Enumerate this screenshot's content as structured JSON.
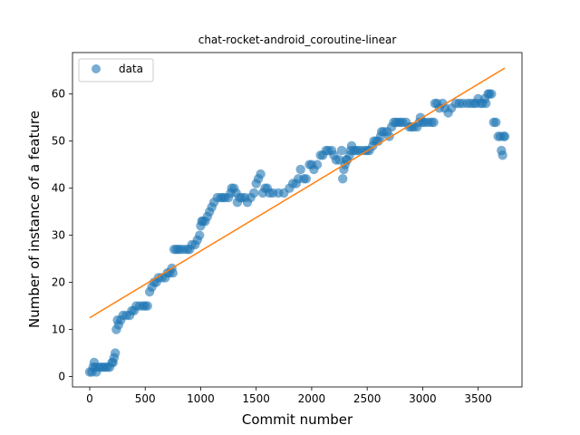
{
  "chart_data": {
    "type": "scatter",
    "title": "chat-rocket-android_coroutine-linear",
    "xlabel": "Commit number",
    "ylabel": "Number of instance of a feature",
    "xlim": [
      -155,
      3895
    ],
    "ylim": [
      -2.2,
      68.8
    ],
    "xticks": [
      0,
      500,
      1000,
      1500,
      2000,
      2500,
      3000,
      3500
    ],
    "yticks": [
      0,
      10,
      20,
      30,
      40,
      50,
      60
    ],
    "legend": {
      "position": "top-left",
      "entries": [
        "data"
      ]
    },
    "colors": {
      "data": "#1f77b4",
      "fit": "#ff7f0e"
    },
    "series": [
      {
        "name": "data",
        "kind": "scatter",
        "points": [
          [
            0,
            1
          ],
          [
            20,
            1
          ],
          [
            30,
            2
          ],
          [
            40,
            3
          ],
          [
            50,
            2
          ],
          [
            60,
            1
          ],
          [
            80,
            2
          ],
          [
            100,
            2
          ],
          [
            120,
            2
          ],
          [
            140,
            2
          ],
          [
            160,
            2
          ],
          [
            180,
            2
          ],
          [
            200,
            3
          ],
          [
            210,
            3
          ],
          [
            220,
            4
          ],
          [
            230,
            5
          ],
          [
            240,
            10
          ],
          [
            250,
            12
          ],
          [
            260,
            11
          ],
          [
            280,
            12
          ],
          [
            300,
            13
          ],
          [
            330,
            13
          ],
          [
            360,
            13
          ],
          [
            380,
            14
          ],
          [
            400,
            14
          ],
          [
            420,
            15
          ],
          [
            450,
            15
          ],
          [
            480,
            15
          ],
          [
            500,
            15
          ],
          [
            520,
            15
          ],
          [
            540,
            18
          ],
          [
            560,
            19
          ],
          [
            580,
            20
          ],
          [
            600,
            20
          ],
          [
            620,
            21
          ],
          [
            650,
            21
          ],
          [
            680,
            21
          ],
          [
            700,
            22
          ],
          [
            720,
            22
          ],
          [
            740,
            23
          ],
          [
            750,
            22
          ],
          [
            760,
            27
          ],
          [
            780,
            27
          ],
          [
            800,
            27
          ],
          [
            820,
            27
          ],
          [
            850,
            27
          ],
          [
            880,
            27
          ],
          [
            900,
            27
          ],
          [
            920,
            28
          ],
          [
            950,
            28
          ],
          [
            970,
            29
          ],
          [
            990,
            30
          ],
          [
            1000,
            32
          ],
          [
            1010,
            33
          ],
          [
            1020,
            33
          ],
          [
            1040,
            33
          ],
          [
            1060,
            34
          ],
          [
            1080,
            35
          ],
          [
            1100,
            36
          ],
          [
            1120,
            37
          ],
          [
            1150,
            38
          ],
          [
            1180,
            38
          ],
          [
            1200,
            38
          ],
          [
            1220,
            38
          ],
          [
            1250,
            38
          ],
          [
            1270,
            39
          ],
          [
            1280,
            40
          ],
          [
            1300,
            40
          ],
          [
            1320,
            39
          ],
          [
            1330,
            37
          ],
          [
            1350,
            38
          ],
          [
            1370,
            38
          ],
          [
            1400,
            38
          ],
          [
            1420,
            37
          ],
          [
            1450,
            38
          ],
          [
            1480,
            39
          ],
          [
            1500,
            41
          ],
          [
            1520,
            42
          ],
          [
            1540,
            43
          ],
          [
            1560,
            39
          ],
          [
            1580,
            40
          ],
          [
            1600,
            40
          ],
          [
            1620,
            39
          ],
          [
            1650,
            39
          ],
          [
            1700,
            39
          ],
          [
            1750,
            39
          ],
          [
            1800,
            40
          ],
          [
            1830,
            41
          ],
          [
            1860,
            41
          ],
          [
            1880,
            42
          ],
          [
            1900,
            44
          ],
          [
            1930,
            42
          ],
          [
            1950,
            42
          ],
          [
            1980,
            45
          ],
          [
            2000,
            45
          ],
          [
            2020,
            44
          ],
          [
            2050,
            45
          ],
          [
            2080,
            47
          ],
          [
            2100,
            47
          ],
          [
            2130,
            48
          ],
          [
            2150,
            48
          ],
          [
            2180,
            48
          ],
          [
            2200,
            47
          ],
          [
            2220,
            46
          ],
          [
            2250,
            46
          ],
          [
            2270,
            48
          ],
          [
            2280,
            42
          ],
          [
            2290,
            44
          ],
          [
            2300,
            45
          ],
          [
            2310,
            46
          ],
          [
            2320,
            46
          ],
          [
            2340,
            47
          ],
          [
            2350,
            48
          ],
          [
            2360,
            49
          ],
          [
            2380,
            48
          ],
          [
            2400,
            48
          ],
          [
            2420,
            48
          ],
          [
            2450,
            48
          ],
          [
            2480,
            48
          ],
          [
            2500,
            48
          ],
          [
            2520,
            48
          ],
          [
            2550,
            49
          ],
          [
            2560,
            50
          ],
          [
            2580,
            50
          ],
          [
            2600,
            50
          ],
          [
            2620,
            51
          ],
          [
            2630,
            52
          ],
          [
            2650,
            52
          ],
          [
            2680,
            52
          ],
          [
            2700,
            51
          ],
          [
            2720,
            53
          ],
          [
            2740,
            54
          ],
          [
            2760,
            54
          ],
          [
            2780,
            54
          ],
          [
            2800,
            54
          ],
          [
            2820,
            54
          ],
          [
            2850,
            54
          ],
          [
            2880,
            53
          ],
          [
            2900,
            53
          ],
          [
            2920,
            53
          ],
          [
            2950,
            53
          ],
          [
            2970,
            54
          ],
          [
            2980,
            55
          ],
          [
            3000,
            54
          ],
          [
            3020,
            54
          ],
          [
            3050,
            54
          ],
          [
            3080,
            54
          ],
          [
            3100,
            54
          ],
          [
            3110,
            58
          ],
          [
            3130,
            58
          ],
          [
            3150,
            57
          ],
          [
            3180,
            58
          ],
          [
            3200,
            57
          ],
          [
            3230,
            56
          ],
          [
            3260,
            57
          ],
          [
            3300,
            58
          ],
          [
            3330,
            58
          ],
          [
            3360,
            58
          ],
          [
            3400,
            58
          ],
          [
            3430,
            58
          ],
          [
            3460,
            58
          ],
          [
            3480,
            58
          ],
          [
            3500,
            59
          ],
          [
            3520,
            58
          ],
          [
            3540,
            58
          ],
          [
            3560,
            59
          ],
          [
            3570,
            58
          ],
          [
            3590,
            60
          ],
          [
            3600,
            60
          ],
          [
            3620,
            60
          ],
          [
            3640,
            54
          ],
          [
            3660,
            54
          ],
          [
            3680,
            51
          ],
          [
            3700,
            51
          ],
          [
            3710,
            48
          ],
          [
            3720,
            47
          ],
          [
            3730,
            51
          ],
          [
            3740,
            51
          ]
        ]
      },
      {
        "name": "fit",
        "kind": "line",
        "points": [
          [
            0,
            12.5
          ],
          [
            3740,
            65.5
          ]
        ]
      }
    ]
  }
}
